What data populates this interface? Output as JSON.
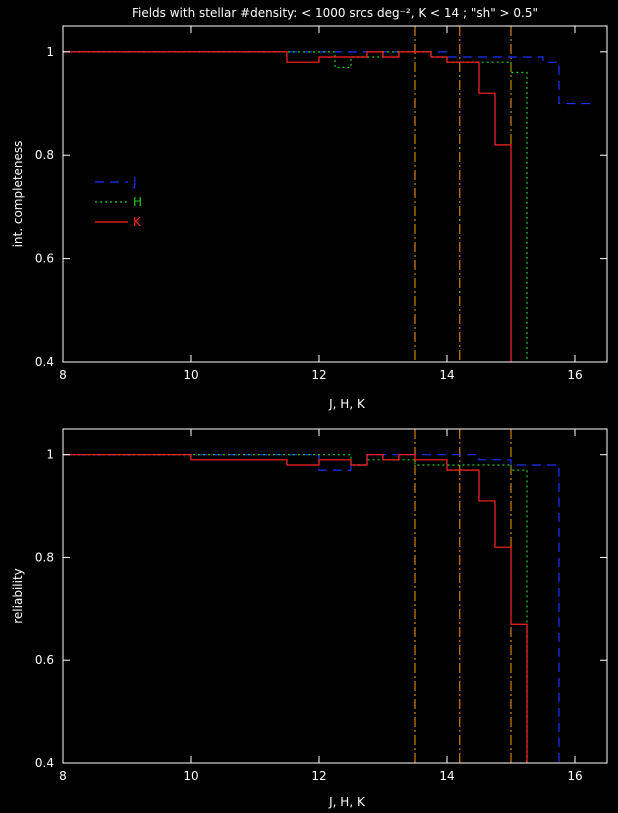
{
  "page_title": "Fields with stellar #density: < 1000 srcs deg⁻², K < 14 ; \"sh\" > 0.5\"",
  "colors": {
    "J": "#1a33ff",
    "H": "#22cc22",
    "K": "#ff2222",
    "limit_line": "#ff9900",
    "axes": "#ffffff",
    "background": "#000000"
  },
  "chart_data": [
    {
      "type": "line",
      "step": true,
      "title": "",
      "xlabel": "J, H, K",
      "ylabel": "int. completeness",
      "xlim": [
        8,
        16.5
      ],
      "ylim": [
        0.4,
        1.05
      ],
      "x_ticks": [
        "8",
        "10",
        "12",
        "14",
        "16"
      ],
      "y_ticks": [
        "0.4",
        "0.6",
        "0.8",
        "1"
      ],
      "legend": {
        "placement": "left-middle",
        "entries": [
          "J",
          "H",
          "K"
        ]
      },
      "vertical_lines": [
        13.5,
        14.2,
        15.0
      ],
      "series": [
        {
          "name": "J",
          "style": "dashed",
          "x": [
            8,
            11.5,
            12.5,
            12.75,
            13.0,
            13.25,
            13.5,
            13.75,
            14.0,
            14.25,
            14.5,
            14.75,
            15.0,
            15.25,
            15.5,
            15.75,
            16.0
          ],
          "y": [
            1.0,
            1.0,
            1.0,
            1.0,
            1.0,
            1.0,
            1.0,
            1.0,
            0.99,
            0.99,
            0.99,
            0.99,
            0.99,
            0.99,
            0.98,
            0.9,
            0.9
          ]
        },
        {
          "name": "H",
          "style": "dotted",
          "x": [
            8,
            11.5,
            12.25,
            12.5,
            12.75,
            13.0,
            13.25,
            13.5,
            13.75,
            14.0,
            14.25,
            14.5,
            14.75,
            15.0,
            15.25
          ],
          "y": [
            1.0,
            1.0,
            0.97,
            0.99,
            0.99,
            1.0,
            1.0,
            1.0,
            0.99,
            0.98,
            0.98,
            0.98,
            0.98,
            0.96,
            0.4
          ]
        },
        {
          "name": "K",
          "style": "solid",
          "x": [
            8,
            11.5,
            12.0,
            12.5,
            12.75,
            13.0,
            13.25,
            13.5,
            13.75,
            14.0,
            14.25,
            14.5,
            14.75,
            15.0
          ],
          "y": [
            1.0,
            0.98,
            0.99,
            0.99,
            1.0,
            0.99,
            1.0,
            1.0,
            0.99,
            0.98,
            0.98,
            0.92,
            0.82,
            0.4
          ]
        }
      ]
    },
    {
      "type": "line",
      "step": true,
      "title": "",
      "xlabel": "J, H, K",
      "ylabel": "reliability",
      "xlim": [
        8,
        16.5
      ],
      "ylim": [
        0.4,
        1.05
      ],
      "x_ticks": [
        "8",
        "10",
        "12",
        "14",
        "16"
      ],
      "y_ticks": [
        "0.4",
        "0.6",
        "0.8",
        "1"
      ],
      "vertical_lines": [
        13.5,
        14.2,
        15.0
      ],
      "series": [
        {
          "name": "J",
          "style": "dashed",
          "x": [
            8,
            10.0,
            12.0,
            12.5,
            12.75,
            13.0,
            13.25,
            13.5,
            13.75,
            14.0,
            14.25,
            14.5,
            14.75,
            15.0,
            15.25,
            15.5,
            15.75
          ],
          "y": [
            1.0,
            1.0,
            0.97,
            0.98,
            1.0,
            1.0,
            1.0,
            1.0,
            1.0,
            1.0,
            1.0,
            0.99,
            0.99,
            0.98,
            0.98,
            0.98,
            0.4
          ]
        },
        {
          "name": "H",
          "style": "dotted",
          "x": [
            8,
            10.0,
            11.5,
            12.5,
            12.75,
            13.0,
            13.25,
            13.5,
            13.75,
            14.0,
            14.25,
            14.5,
            14.75,
            15.0,
            15.25
          ],
          "y": [
            1.0,
            1.0,
            1.0,
            0.98,
            0.99,
            0.99,
            0.99,
            0.98,
            0.98,
            0.98,
            0.98,
            0.98,
            0.98,
            0.97,
            0.4
          ]
        },
        {
          "name": "K",
          "style": "solid",
          "x": [
            8,
            10.0,
            11.5,
            12.0,
            12.5,
            12.75,
            13.0,
            13.25,
            13.5,
            13.75,
            14.0,
            14.25,
            14.5,
            14.75,
            15.0,
            15.25
          ],
          "y": [
            1.0,
            0.99,
            0.98,
            0.99,
            0.98,
            1.0,
            0.99,
            1.0,
            0.99,
            0.99,
            0.97,
            0.97,
            0.91,
            0.82,
            0.67,
            0.4
          ]
        }
      ]
    }
  ]
}
